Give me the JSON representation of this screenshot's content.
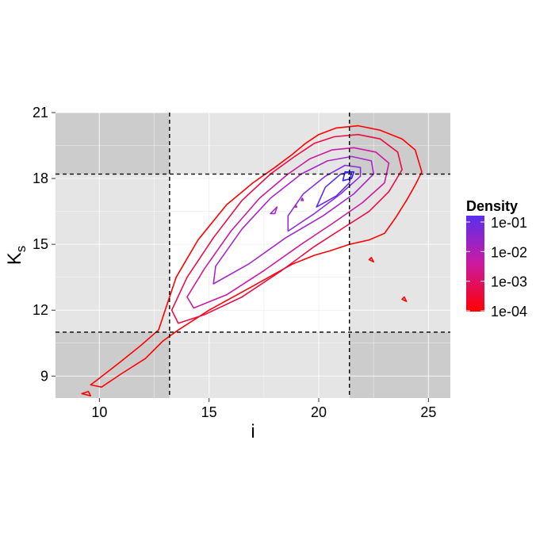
{
  "chart_data": {
    "type": "contour",
    "xlabel": "i",
    "ylabel_main": "K",
    "ylabel_sub": "s",
    "xlim": [
      8,
      26
    ],
    "ylim": [
      8,
      21
    ],
    "x_ticks": [
      10,
      15,
      20,
      25
    ],
    "y_ticks": [
      9,
      12,
      15,
      18,
      21
    ],
    "grid": true,
    "reference_lines": {
      "vertical": [
        13.2,
        21.4
      ],
      "horizontal": [
        11.0,
        18.2
      ]
    },
    "shaded_regions": {
      "dark": [
        {
          "x": [
            8,
            13.2
          ],
          "y": [
            18.2,
            21
          ]
        },
        {
          "x": [
            21.4,
            26
          ],
          "y": [
            18.2,
            21
          ]
        },
        {
          "x": [
            8,
            13.2
          ],
          "y": [
            8,
            11.0
          ]
        },
        {
          "x": [
            21.4,
            26
          ],
          "y": [
            8,
            11.0
          ]
        }
      ],
      "light": [
        {
          "x": [
            13.2,
            21.4
          ],
          "y": [
            18.2,
            21
          ]
        },
        {
          "x": [
            13.2,
            21.4
          ],
          "y": [
            8,
            11.0
          ]
        },
        {
          "x": [
            8,
            13.2
          ],
          "y": [
            11.0,
            18.2
          ]
        },
        {
          "x": [
            21.4,
            26
          ],
          "y": [
            11.0,
            18.2
          ]
        }
      ],
      "white": [
        {
          "x": [
            13.2,
            21.4
          ],
          "y": [
            11.0,
            18.2
          ]
        }
      ]
    },
    "contours": [
      {
        "level": 0.0001,
        "color": "#ff0000",
        "paths": [
          [
            [
              10.1,
              8.5
            ],
            [
              11.0,
              9.1
            ],
            [
              12.1,
              9.8
            ],
            [
              12.9,
              10.6
            ],
            [
              13.6,
              11.1
            ],
            [
              15.0,
              12.0
            ],
            [
              17.0,
              13.1
            ],
            [
              18.8,
              14.1
            ],
            [
              19.8,
              14.5
            ],
            [
              20.5,
              14.7
            ],
            [
              21.4,
              15.0
            ],
            [
              22.3,
              15.2
            ],
            [
              23.0,
              15.5
            ],
            [
              23.5,
              16.2
            ],
            [
              24.0,
              17.0
            ],
            [
              24.4,
              17.7
            ],
            [
              24.7,
              18.3
            ],
            [
              24.4,
              19.3
            ],
            [
              23.8,
              19.8
            ],
            [
              22.8,
              20.2
            ],
            [
              21.8,
              20.4
            ],
            [
              20.8,
              20.3
            ],
            [
              20.0,
              20.0
            ],
            [
              19.4,
              19.6
            ],
            [
              18.8,
              19.1
            ],
            [
              18.0,
              18.5
            ],
            [
              17.0,
              17.8
            ],
            [
              15.8,
              16.8
            ],
            [
              14.5,
              15.2
            ],
            [
              13.5,
              13.5
            ],
            [
              13.1,
              12.3
            ],
            [
              12.7,
              11.1
            ],
            [
              11.9,
              10.4
            ],
            [
              10.9,
              9.6
            ],
            [
              10.0,
              8.9
            ],
            [
              9.6,
              8.6
            ],
            [
              10.1,
              8.5
            ]
          ],
          [
            [
              9.2,
              8.2
            ],
            [
              9.5,
              8.3
            ],
            [
              9.6,
              8.1
            ],
            [
              9.2,
              8.2
            ]
          ],
          [
            [
              23.8,
              12.5
            ],
            [
              24.0,
              12.4
            ],
            [
              23.9,
              12.6
            ],
            [
              23.8,
              12.5
            ]
          ],
          [
            [
              22.3,
              14.3
            ],
            [
              22.5,
              14.2
            ],
            [
              22.4,
              14.4
            ],
            [
              22.3,
              14.3
            ]
          ]
        ]
      },
      {
        "level": 0.001,
        "color": "#ee0a47",
        "paths": [
          [
            [
              13.6,
              11.4
            ],
            [
              14.8,
              11.8
            ],
            [
              16.5,
              12.6
            ],
            [
              18.3,
              13.8
            ],
            [
              19.8,
              14.9
            ],
            [
              21.2,
              15.8
            ],
            [
              22.3,
              16.5
            ],
            [
              23.2,
              17.4
            ],
            [
              23.8,
              18.4
            ],
            [
              23.6,
              19.2
            ],
            [
              22.8,
              19.8
            ],
            [
              21.8,
              20.0
            ],
            [
              20.7,
              19.9
            ],
            [
              19.8,
              19.6
            ],
            [
              18.9,
              19.0
            ],
            [
              17.8,
              18.2
            ],
            [
              16.5,
              17.0
            ],
            [
              15.2,
              15.3
            ],
            [
              14.0,
              13.5
            ],
            [
              13.3,
              12.0
            ],
            [
              13.6,
              11.4
            ]
          ]
        ]
      },
      {
        "level": 0.01,
        "color": "#cc1aa0",
        "paths": [
          [
            [
              14.3,
              12.1
            ],
            [
              15.8,
              12.7
            ],
            [
              17.5,
              13.8
            ],
            [
              19.2,
              15.0
            ],
            [
              20.7,
              16.0
            ],
            [
              22.0,
              16.9
            ],
            [
              23.0,
              17.8
            ],
            [
              23.2,
              18.7
            ],
            [
              22.6,
              19.2
            ],
            [
              21.6,
              19.4
            ],
            [
              20.6,
              19.3
            ],
            [
              19.6,
              18.9
            ],
            [
              18.6,
              18.2
            ],
            [
              17.3,
              17.1
            ],
            [
              16.0,
              15.6
            ],
            [
              14.8,
              13.9
            ],
            [
              14.0,
              12.6
            ],
            [
              14.3,
              12.1
            ]
          ]
        ]
      },
      {
        "level": 0.03,
        "color": "#a628c8",
        "paths": [
          [
            [
              15.2,
              13.2
            ],
            [
              16.8,
              14.1
            ],
            [
              18.5,
              15.3
            ],
            [
              20.2,
              16.3
            ],
            [
              21.6,
              17.3
            ],
            [
              22.5,
              18.2
            ],
            [
              22.4,
              18.8
            ],
            [
              21.5,
              19.0
            ],
            [
              20.4,
              18.8
            ],
            [
              19.2,
              18.2
            ],
            [
              17.8,
              17.1
            ],
            [
              16.5,
              15.7
            ],
            [
              15.3,
              14.0
            ],
            [
              15.2,
              13.2
            ]
          ]
        ]
      },
      {
        "level": 0.05,
        "color": "#8a2ee0",
        "paths": [
          [
            [
              18.6,
              15.6
            ],
            [
              19.8,
              16.4
            ],
            [
              21.0,
              17.3
            ],
            [
              21.9,
              18.1
            ],
            [
              21.9,
              18.5
            ],
            [
              21.2,
              18.6
            ],
            [
              20.3,
              18.1
            ],
            [
              19.3,
              17.3
            ],
            [
              18.6,
              16.3
            ],
            [
              18.6,
              15.6
            ]
          ]
        ]
      },
      {
        "level": 0.1,
        "color": "#5a2ef0",
        "paths": [
          [
            [
              19.9,
              16.7
            ],
            [
              20.8,
              17.2
            ],
            [
              21.4,
              17.8
            ],
            [
              21.5,
              18.3
            ],
            [
              21.0,
              18.2
            ],
            [
              20.3,
              17.6
            ],
            [
              19.9,
              16.7
            ]
          ]
        ]
      },
      {
        "level": 0.2,
        "color": "#3322ff",
        "paths": [
          [
            [
              21.1,
              17.9
            ],
            [
              21.5,
              18.0
            ],
            [
              21.6,
              18.3
            ],
            [
              21.2,
              18.3
            ],
            [
              21.1,
              17.9
            ]
          ]
        ]
      },
      {
        "level": 0.03,
        "color": "#a628c8",
        "paths": [
          [
            [
              17.8,
              16.4
            ],
            [
              18.1,
              16.7
            ],
            [
              18.0,
              16.4
            ],
            [
              17.8,
              16.4
            ]
          ],
          [
            [
              19.2,
              17.0
            ],
            [
              19.3,
              17.0
            ],
            [
              19.25,
              17.1
            ],
            [
              19.2,
              17.0
            ]
          ],
          [
            [
              18.9,
              16.7
            ],
            [
              19.0,
              16.7
            ],
            [
              18.95,
              16.8
            ],
            [
              18.9,
              16.7
            ]
          ]
        ]
      }
    ],
    "legend": {
      "title": "Density",
      "placement": "right",
      "gradient_top": "#5a2ef0",
      "gradient_mid": "#cc1aa0",
      "gradient_bottom": "#ff0000",
      "labels": [
        "1e-01",
        "1e-02",
        "1e-03",
        "1e-04"
      ]
    }
  }
}
